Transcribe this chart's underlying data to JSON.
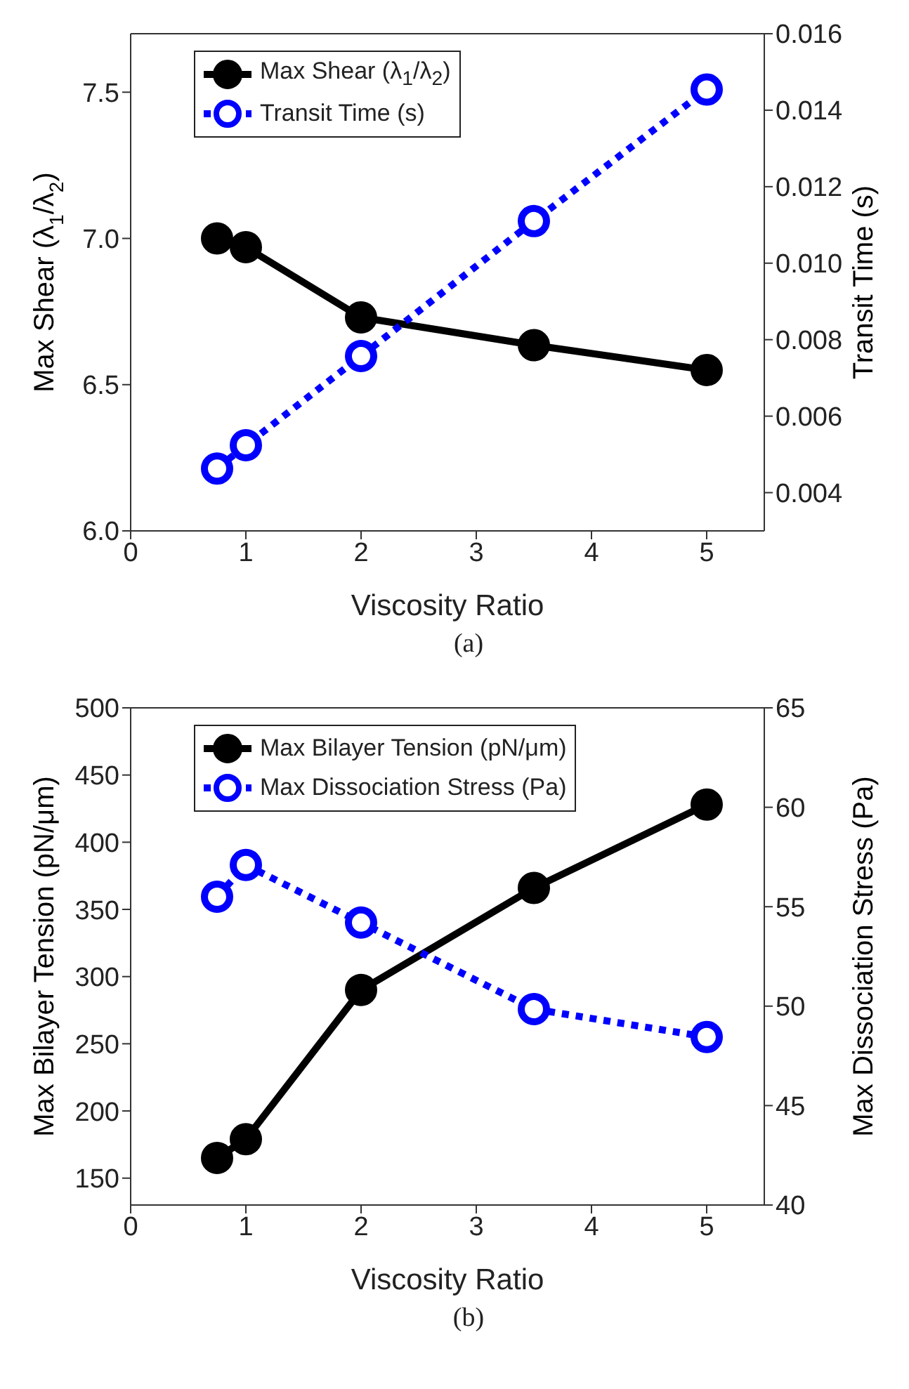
{
  "chart_data": [
    {
      "type": "line",
      "xlabel": "Viscosity Ratio",
      "ylabel": "Max Shear (λ$_{1}$/λ$_{2}$)",
      "y2label": "Transit Time (s)",
      "annotations": [
        "(a)"
      ],
      "x": [
        0.75,
        1,
        2,
        3.5,
        5
      ],
      "xlim": [
        0,
        5.5
      ],
      "xticks": [
        0,
        1,
        2,
        3,
        4,
        5
      ],
      "ylim": [
        6,
        7.7
      ],
      "yticks": [
        {
          "value": 6,
          "label": "6.0"
        },
        6.5,
        {
          "value": 7,
          "label": "7.0"
        },
        7.5
      ],
      "y2lim": [
        0.003,
        0.016
      ],
      "y2ticks": [
        0.004,
        0.006,
        0.008,
        {
          "value": 0.01,
          "label": "0.010"
        },
        0.012,
        0.014,
        0.016
      ],
      "series": [
        {
          "name": "Max Shear (λ$_{1}$/λ$_{2}$)",
          "color": "#000000",
          "line_style": "solid",
          "values": [
            7.0,
            6.97,
            6.73,
            6.635,
            6.55
          ]
        },
        {
          "name": "Transit Time (s)",
          "color": "#0000ff",
          "line_style": "dotted",
          "axis": "y2",
          "values": [
            0.00463,
            0.00524,
            0.00757,
            0.0111,
            0.01454
          ]
        }
      ],
      "marker": "circle",
      "legend": "top left",
      "grid": false
    },
    {
      "type": "line",
      "xlabel": "Viscosity Ratio",
      "ylabel": "Max Bilayer Tension (pN/μm)",
      "y2label": "Max Dissociation Stress (Pa)",
      "annotations": [
        "(b)"
      ],
      "x": [
        0.75,
        1,
        2,
        3.5,
        5
      ],
      "xlim": [
        0,
        5.5
      ],
      "xticks": [
        0,
        1,
        2,
        3,
        4,
        5
      ],
      "ylim": [
        130,
        500
      ],
      "yticks": [
        150,
        200,
        250,
        300,
        350,
        400,
        450,
        500
      ],
      "y2lim": [
        40,
        65
      ],
      "y2ticks": [
        40,
        45,
        50,
        55,
        60,
        65
      ],
      "series": [
        {
          "name": "Max Bilayer Tension (pN/μm)",
          "color": "#000000",
          "line_style": "solid",
          "values": [
            165,
            179,
            290,
            366,
            428
          ]
        },
        {
          "name": "Max Dissociation Stress (Pa)",
          "color": "#0000ff",
          "line_style": "dotted",
          "axis": "y2",
          "values": [
            55.5,
            57.1,
            54.2,
            49.85,
            48.45
          ]
        }
      ],
      "marker": "circle",
      "legend": "top left",
      "grid": false
    }
  ]
}
